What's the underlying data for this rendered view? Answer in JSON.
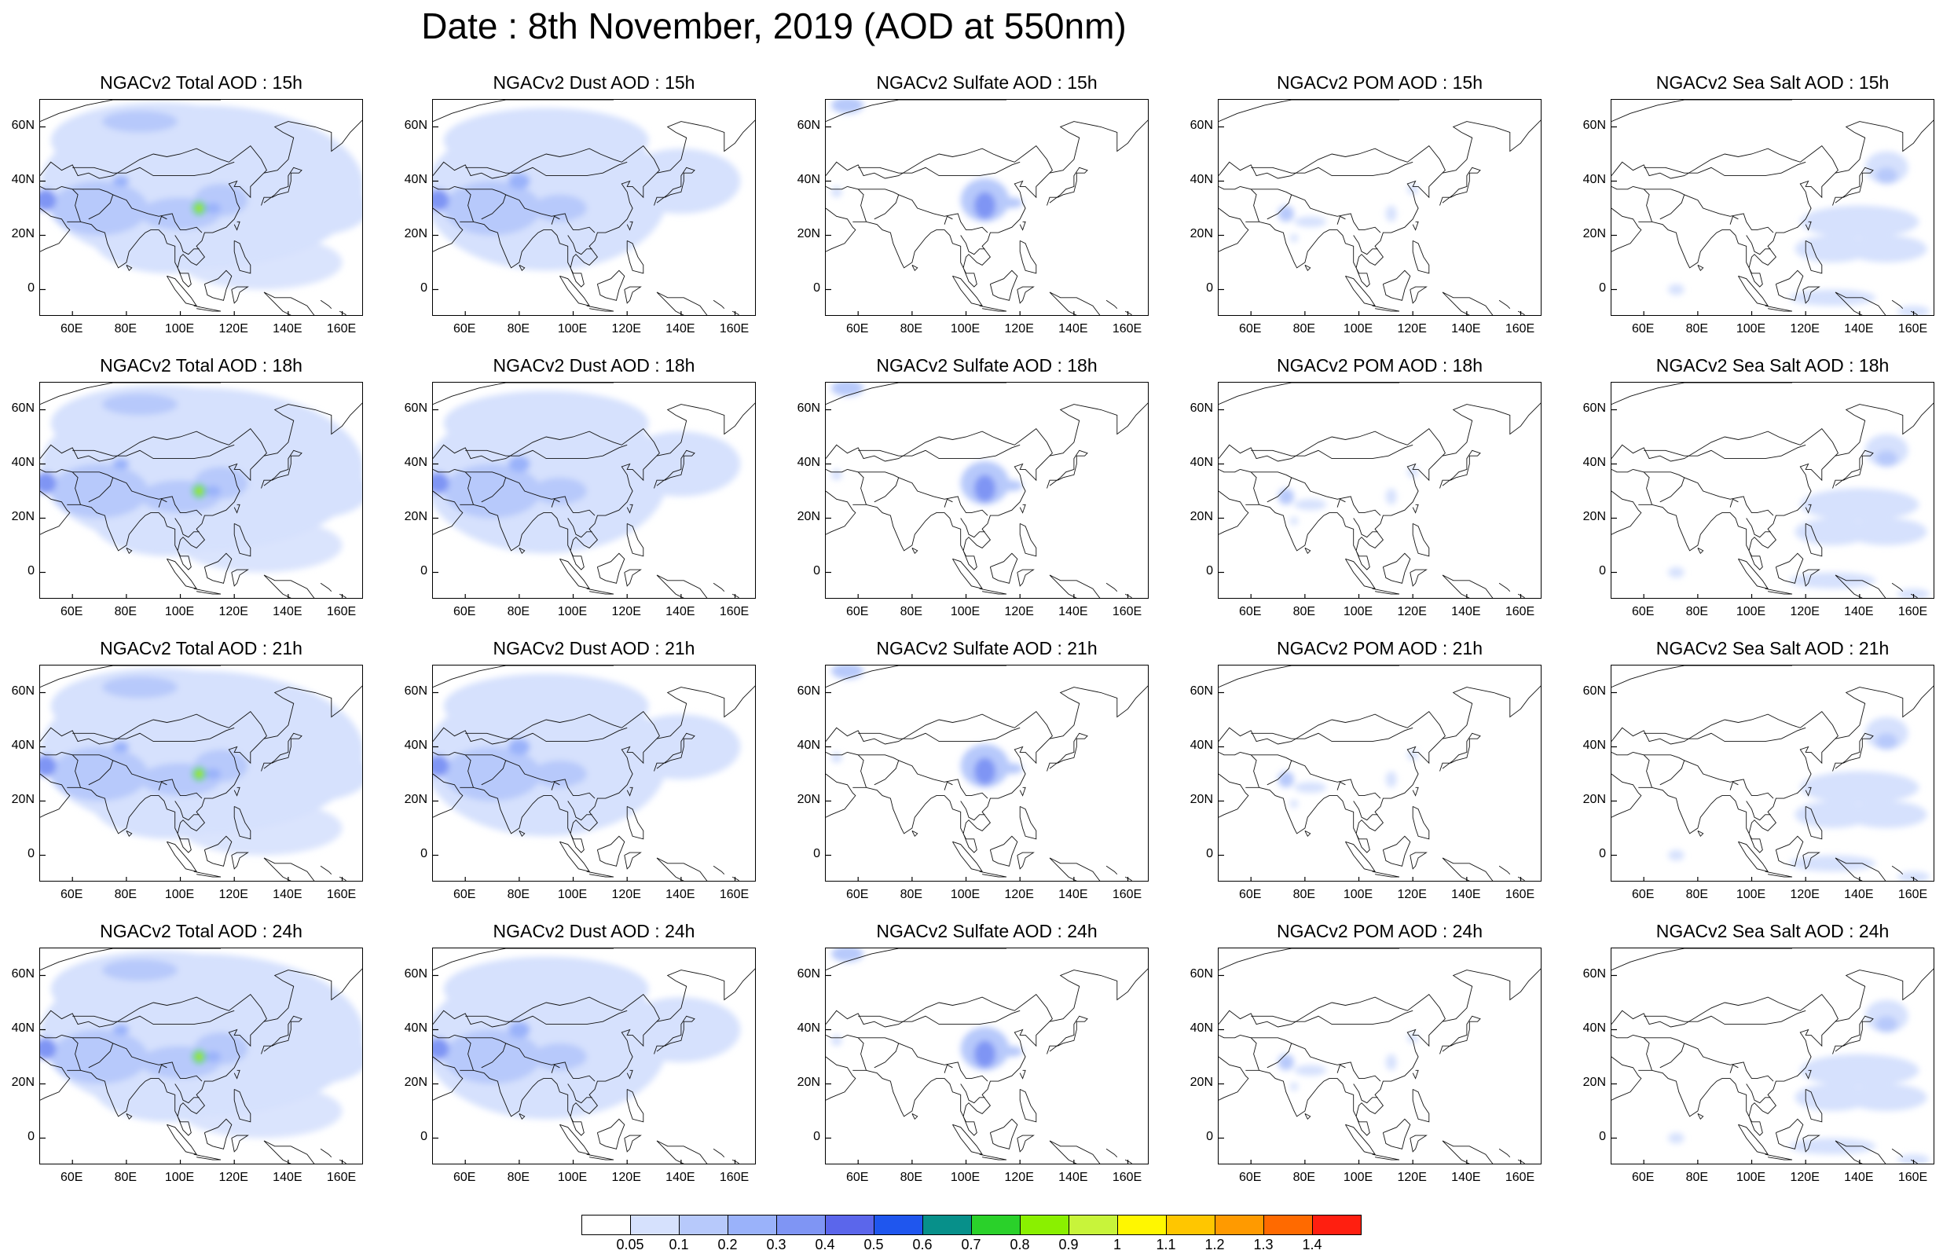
{
  "title": "Date : 8th November, 2019 (AOD at 550nm)",
  "panels": [
    [
      "NGACv2 Total AOD : 15h",
      "NGACv2 Dust AOD : 15h",
      "NGACv2 Sulfate AOD : 15h",
      "NGACv2 POM AOD : 15h",
      "NGACv2 Sea Salt AOD : 15h"
    ],
    [
      "NGACv2 Total AOD : 18h",
      "NGACv2 Dust AOD : 18h",
      "NGACv2 Sulfate AOD : 18h",
      "NGACv2 POM AOD : 18h",
      "NGACv2 Sea Salt AOD : 18h"
    ],
    [
      "NGACv2 Total AOD : 21h",
      "NGACv2 Dust AOD : 21h",
      "NGACv2 Sulfate AOD : 21h",
      "NGACv2 POM AOD : 21h",
      "NGACv2 Sea Salt AOD : 21h"
    ],
    [
      "NGACv2 Total AOD : 24h",
      "NGACv2 Dust AOD : 24h",
      "NGACv2 Sulfate AOD : 24h",
      "NGACv2 POM AOD : 24h",
      "NGACv2 Sea Salt  AOD : 24h"
    ]
  ],
  "lat_labels": [
    "60N",
    "40N",
    "20N",
    "0"
  ],
  "lon_labels": [
    "60E",
    "80E",
    "100E",
    "120E",
    "140E",
    "160E"
  ],
  "colorbar": {
    "labels": [
      "0.05",
      "0.1",
      "0.2",
      "0.3",
      "0.4",
      "0.5",
      "0.6",
      "0.7",
      "0.8",
      "0.9",
      "1",
      "1.1",
      "1.2",
      "1.3",
      "1.4"
    ],
    "colors": [
      "#ffffff",
      "#d6e1fd",
      "#b7c9fb",
      "#9ab2fa",
      "#7f95f4",
      "#5b66eb",
      "#1f56ee",
      "#07908a",
      "#2ad12a",
      "#8af000",
      "#c8f43a",
      "#fff700",
      "#ffc600",
      "#ff9a00",
      "#ff6a00",
      "#ff1f10"
    ]
  }
}
